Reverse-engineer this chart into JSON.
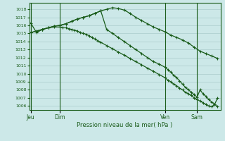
{
  "bg_color": "#cce8e8",
  "grid_color": "#aacccc",
  "line_color": "#1a5c1a",
  "ylabel": "Pression niveau de la mer( hPa )",
  "ylim": [
    1005.5,
    1018.8
  ],
  "yticks": [
    1006,
    1007,
    1008,
    1009,
    1010,
    1011,
    1012,
    1013,
    1014,
    1015,
    1016,
    1017,
    1018
  ],
  "day_positions": [
    0,
    10,
    46,
    57
  ],
  "day_labels": [
    "Jeu",
    "Dim",
    "Ven",
    "Sam"
  ],
  "xlim": [
    -0.5,
    65
  ],
  "series1_x": [
    0,
    2,
    4,
    6,
    8,
    10,
    11,
    12,
    13,
    14,
    15,
    16,
    17,
    18,
    19,
    20,
    21,
    22,
    23,
    24,
    26,
    28,
    30,
    32,
    34,
    36,
    38,
    40,
    42,
    44,
    46,
    47,
    48,
    49,
    50,
    51,
    52,
    53,
    54,
    55,
    56,
    57,
    58,
    59,
    60,
    61,
    62,
    63,
    64
  ],
  "series1_y": [
    1016.3,
    1015.1,
    1015.5,
    1015.7,
    1015.8,
    1015.8,
    1015.7,
    1015.7,
    1015.6,
    1015.5,
    1015.4,
    1015.3,
    1015.1,
    1015.0,
    1014.9,
    1014.7,
    1014.5,
    1014.3,
    1014.1,
    1013.9,
    1013.5,
    1013.1,
    1012.7,
    1012.3,
    1011.9,
    1011.5,
    1011.1,
    1010.7,
    1010.3,
    1009.9,
    1009.5,
    1009.2,
    1009.0,
    1008.7,
    1008.5,
    1008.2,
    1008.0,
    1007.7,
    1007.5,
    1007.3,
    1007.0,
    1006.8,
    1006.6,
    1006.4,
    1006.2,
    1006.0,
    1005.9,
    1006.2,
    1007.0
  ],
  "series2_x": [
    0,
    2,
    4,
    6,
    8,
    10,
    12,
    14,
    16,
    18,
    20,
    22,
    24,
    26,
    28,
    30,
    32,
    34,
    36,
    38,
    40,
    42,
    44,
    46,
    48,
    50,
    52,
    54,
    56,
    58,
    60,
    62,
    64
  ],
  "series2_y": [
    1015.1,
    1015.3,
    1015.5,
    1015.7,
    1015.9,
    1016.0,
    1016.2,
    1016.5,
    1016.8,
    1017.0,
    1017.2,
    1017.5,
    1017.8,
    1018.0,
    1018.2,
    1018.1,
    1017.9,
    1017.5,
    1017.0,
    1016.6,
    1016.2,
    1015.8,
    1015.5,
    1015.2,
    1014.8,
    1014.5,
    1014.2,
    1013.8,
    1013.3,
    1012.8,
    1012.5,
    1012.2,
    1011.9
  ],
  "series3_x": [
    0,
    2,
    4,
    6,
    8,
    10,
    12,
    14,
    16,
    18,
    20,
    22,
    24,
    26,
    28,
    30,
    32,
    34,
    36,
    38,
    40,
    42,
    44,
    46,
    47,
    48,
    49,
    50,
    51,
    52,
    53,
    54,
    55,
    56,
    57,
    58,
    59,
    60,
    61,
    62,
    63,
    64
  ],
  "series3_y": [
    1015.1,
    1015.3,
    1015.5,
    1015.7,
    1015.9,
    1016.0,
    1016.2,
    1016.5,
    1016.8,
    1017.0,
    1017.2,
    1017.5,
    1017.8,
    1015.5,
    1015.0,
    1014.5,
    1014.0,
    1013.5,
    1013.0,
    1012.5,
    1012.0,
    1011.5,
    1011.2,
    1010.8,
    1010.5,
    1010.2,
    1009.8,
    1009.5,
    1009.1,
    1008.7,
    1008.3,
    1008.0,
    1007.7,
    1007.4,
    1007.1,
    1008.0,
    1007.5,
    1007.2,
    1006.8,
    1006.5,
    1006.2,
    1005.9
  ]
}
